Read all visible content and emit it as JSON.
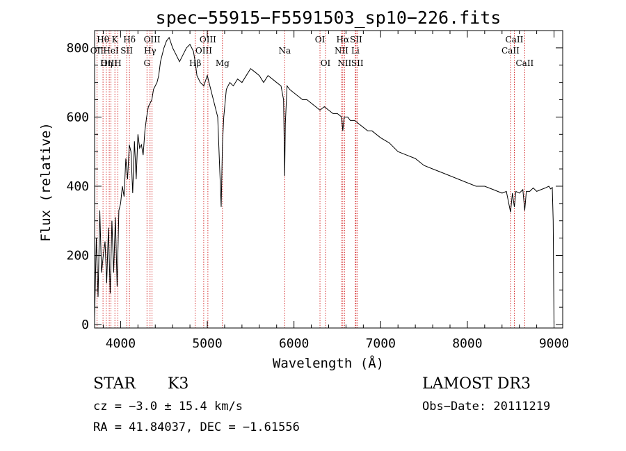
{
  "chart_data": {
    "type": "line",
    "title": "spec−55915−F5591503_sp10−226.fits",
    "xlabel": "Wavelength (Å)",
    "ylabel": "Flux (relative)",
    "xlim": [
      3700,
      9100
    ],
    "ylim": [
      -10,
      850
    ],
    "xticks": [
      4000,
      5000,
      6000,
      7000,
      8000,
      9000
    ],
    "yticks": [
      0,
      200,
      400,
      600,
      800
    ],
    "series": [
      {
        "name": "flux",
        "x": [
          3700,
          3720,
          3740,
          3760,
          3780,
          3800,
          3820,
          3840,
          3860,
          3880,
          3900,
          3920,
          3940,
          3960,
          3980,
          4000,
          4020,
          4040,
          4060,
          4080,
          4100,
          4120,
          4140,
          4160,
          4180,
          4200,
          4220,
          4240,
          4260,
          4280,
          4300,
          4320,
          4340,
          4360,
          4380,
          4400,
          4420,
          4440,
          4460,
          4480,
          4500,
          4530,
          4560,
          4600,
          4640,
          4680,
          4720,
          4760,
          4800,
          4840,
          4860,
          4880,
          4920,
          4960,
          5000,
          5040,
          5080,
          5120,
          5160,
          5175,
          5190,
          5220,
          5260,
          5300,
          5350,
          5400,
          5450,
          5500,
          5550,
          5600,
          5650,
          5700,
          5750,
          5800,
          5850,
          5880,
          5893,
          5900,
          5920,
          5950,
          6000,
          6050,
          6100,
          6150,
          6200,
          6250,
          6300,
          6350,
          6400,
          6450,
          6500,
          6550,
          6563,
          6580,
          6620,
          6650,
          6700,
          6750,
          6800,
          6850,
          6900,
          6950,
          7000,
          7100,
          7200,
          7300,
          7400,
          7500,
          7600,
          7700,
          7800,
          7900,
          8000,
          8100,
          8200,
          8300,
          8400,
          8450,
          8498,
          8520,
          8542,
          8560,
          8600,
          8640,
          8662,
          8680,
          8720,
          8760,
          8800,
          8850,
          8900,
          8940,
          8960,
          8980,
          8990,
          9000
        ],
        "values": [
          20,
          250,
          80,
          330,
          150,
          200,
          240,
          120,
          280,
          90,
          300,
          150,
          310,
          110,
          330,
          350,
          400,
          370,
          480,
          420,
          520,
          500,
          380,
          530,
          420,
          550,
          510,
          520,
          490,
          560,
          600,
          630,
          640,
          650,
          680,
          690,
          700,
          720,
          760,
          780,
          800,
          820,
          830,
          800,
          780,
          760,
          780,
          800,
          810,
          790,
          760,
          720,
          700,
          690,
          720,
          680,
          640,
          600,
          340,
          520,
          600,
          680,
          700,
          690,
          710,
          700,
          720,
          740,
          730,
          720,
          700,
          720,
          710,
          700,
          690,
          650,
          430,
          580,
          690,
          680,
          670,
          660,
          650,
          650,
          640,
          630,
          620,
          630,
          620,
          610,
          610,
          600,
          560,
          600,
          600,
          590,
          590,
          580,
          570,
          560,
          560,
          550,
          540,
          525,
          500,
          490,
          480,
          460,
          450,
          440,
          430,
          420,
          410,
          400,
          400,
          390,
          380,
          385,
          325,
          380,
          340,
          385,
          380,
          390,
          330,
          385,
          385,
          395,
          385,
          390,
          395,
          400,
          392,
          396,
          300,
          0
        ]
      }
    ],
    "lines": [
      {
        "name": "Hθ",
        "x": 3797,
        "row": 0
      },
      {
        "name": "OII",
        "x": 3727,
        "row": 1
      },
      {
        "name": "OIII",
        "x": 3869,
        "row": 2
      },
      {
        "name": "K",
        "x": 3934,
        "row": 0
      },
      {
        "name": "HeI",
        "x": 3889,
        "row": 1
      },
      {
        "name": "Hη",
        "x": 3835,
        "row": 2
      },
      {
        "name": "Hδ",
        "x": 4102,
        "row": 0
      },
      {
        "name": "SII",
        "x": 4070,
        "row": 1
      },
      {
        "name": "H",
        "x": 3968,
        "row": 2
      },
      {
        "name": "OIII",
        "x": 4363,
        "row": 0
      },
      {
        "name": "Hγ",
        "x": 4340,
        "row": 1
      },
      {
        "name": "G",
        "x": 4304,
        "row": 2
      },
      {
        "name": "OIII",
        "x": 5007,
        "row": 0
      },
      {
        "name": "OIII",
        "x": 4959,
        "row": 1
      },
      {
        "name": "Hβ",
        "x": 4861,
        "row": 2
      },
      {
        "name": "Mg",
        "x": 5175,
        "row": 2
      },
      {
        "name": "Na",
        "x": 5893,
        "row": 1
      },
      {
        "name": "OI",
        "x": 6300,
        "row": 0
      },
      {
        "name": "OI",
        "x": 6364,
        "row": 2
      },
      {
        "name": "Hα",
        "x": 6563,
        "row": 0
      },
      {
        "name": "SII",
        "x": 6716,
        "row": 0
      },
      {
        "name": "NII",
        "x": 6548,
        "row": 1
      },
      {
        "name": "Li",
        "x": 6708,
        "row": 1
      },
      {
        "name": "NII",
        "x": 6583,
        "row": 2
      },
      {
        "name": "SII",
        "x": 6731,
        "row": 2
      },
      {
        "name": "CaII",
        "x": 8542,
        "row": 0
      },
      {
        "name": "CaII",
        "x": 8498,
        "row": 1
      },
      {
        "name": "CaII",
        "x": 8662,
        "row": 2
      }
    ]
  },
  "info": {
    "class_label": "STAR",
    "subclass": "K3",
    "survey": "LAMOST DR3",
    "redshift": "cz = −3.0 ± 15.4 km/s",
    "obs_date": "Obs−Date: 20111219",
    "coords": "RA =  41.84037, DEC =  −1.61556"
  },
  "colors": {
    "line_marker": "#cc0000",
    "axis": "#000000"
  }
}
